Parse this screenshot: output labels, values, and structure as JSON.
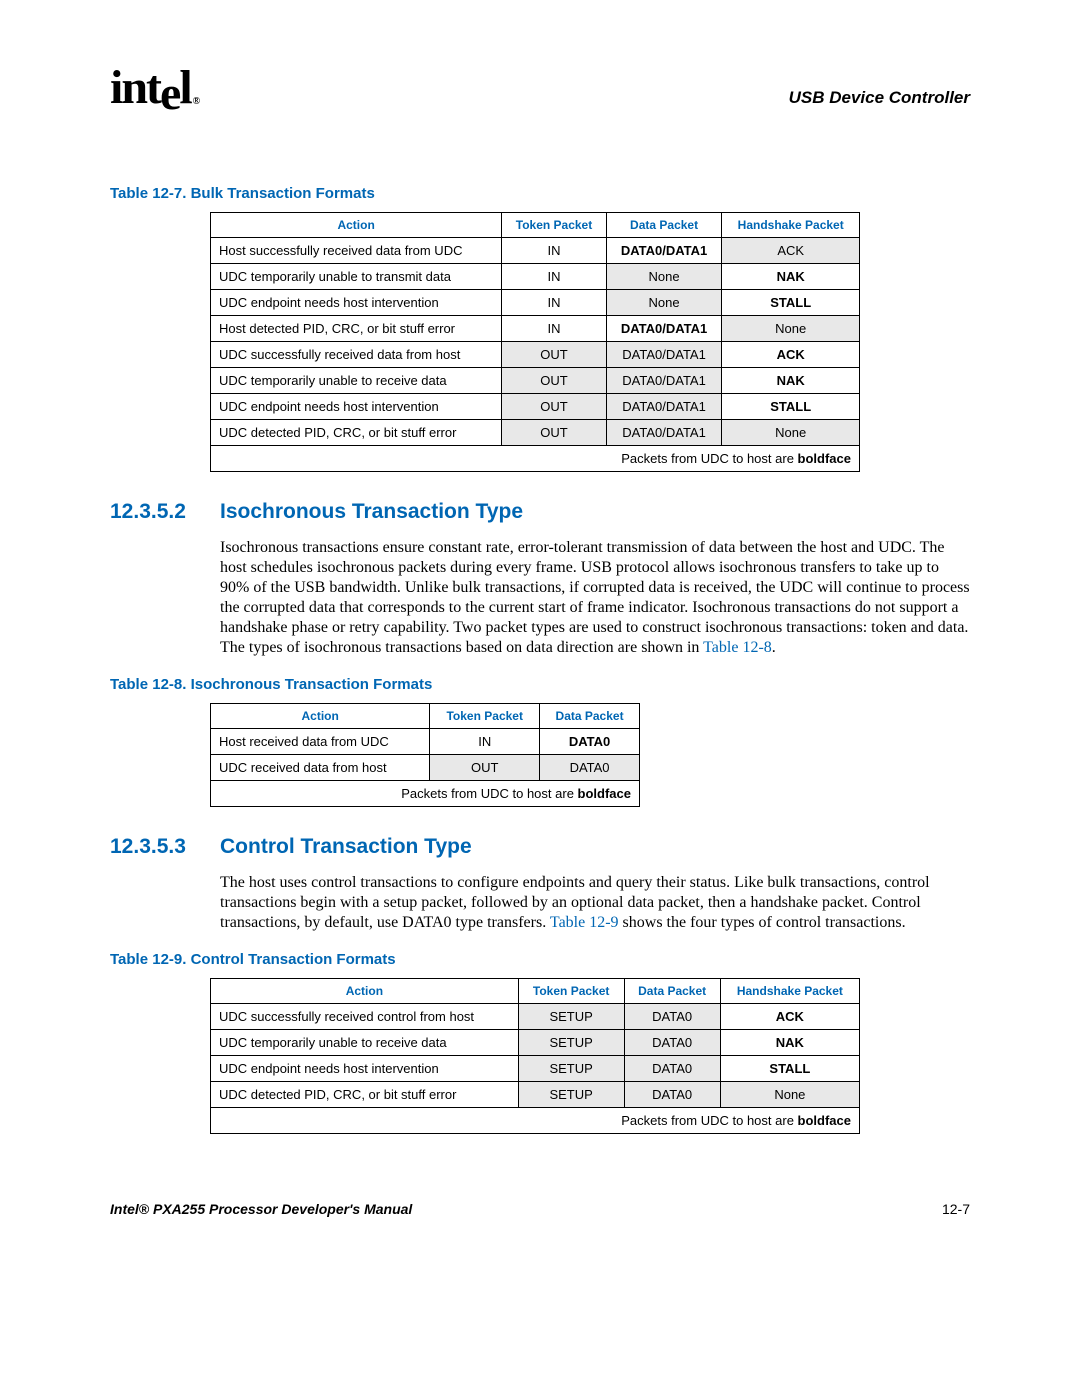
{
  "header": {
    "chapter": "USB Device Controller"
  },
  "table7": {
    "caption": "Table 12-7. Bulk Transaction Formats",
    "headers": [
      "Action",
      "Token Packet",
      "Data Packet",
      "Handshake Packet"
    ],
    "rows": [
      {
        "action": "Host successfully received data from UDC",
        "token": "IN",
        "data": "DATA0/DATA1",
        "hshake": "ACK",
        "data_bold": true,
        "hshake_shade": true
      },
      {
        "action": "UDC temporarily unable to transmit data",
        "token": "IN",
        "data": "None",
        "hshake": "NAK",
        "data_shade": true,
        "hshake_bold": true
      },
      {
        "action": "UDC endpoint needs host intervention",
        "token": "IN",
        "data": "None",
        "hshake": "STALL",
        "data_shade": true,
        "hshake_bold": true
      },
      {
        "action": "Host detected PID, CRC, or bit stuff error",
        "token": "IN",
        "data": "DATA0/DATA1",
        "hshake": "None",
        "data_bold": true,
        "hshake_shade": true
      },
      {
        "action": "UDC successfully received data from host",
        "token": "OUT",
        "data": "DATA0/DATA1",
        "hshake": "ACK",
        "token_shade": true,
        "data_shade": true,
        "hshake_bold": true
      },
      {
        "action": "UDC temporarily unable to receive data",
        "token": "OUT",
        "data": "DATA0/DATA1",
        "hshake": "NAK",
        "token_shade": true,
        "data_shade": true,
        "hshake_bold": true
      },
      {
        "action": "UDC endpoint needs host intervention",
        "token": "OUT",
        "data": "DATA0/DATA1",
        "hshake": "STALL",
        "token_shade": true,
        "data_shade": true,
        "hshake_bold": true
      },
      {
        "action": "UDC detected PID, CRC, or bit stuff error",
        "token": "OUT",
        "data": "DATA0/DATA1",
        "hshake": "None",
        "token_shade": true,
        "data_shade": true,
        "hshake_shade": true
      }
    ],
    "footnote_pre": "Packets from UDC to host are ",
    "footnote_bold": "boldface"
  },
  "sec2": {
    "num": "12.3.5.2",
    "title": "Isochronous Transaction Type",
    "para": "Isochronous transactions ensure constant rate, error-tolerant transmission of data between the host and UDC. The host schedules isochronous packets during every frame. USB protocol allows isochronous transfers to take up to 90% of the USB bandwidth. Unlike bulk transactions, if corrupted data is received, the UDC will continue to process the corrupted data that corresponds to the current start of frame indicator. Isochronous transactions do not support a handshake phase or retry capability. Two packet types are used to construct isochronous transactions: token and data. The types of isochronous transactions based on data direction are shown in ",
    "xref": "Table 12-8",
    "tail": "."
  },
  "table8": {
    "caption": "Table 12-8. Isochronous Transaction Formats",
    "headers": [
      "Action",
      "Token Packet",
      "Data Packet"
    ],
    "rows": [
      {
        "action": "Host received data from UDC",
        "token": "IN",
        "data": "DATA0",
        "data_bold": true
      },
      {
        "action": "UDC received data from host",
        "token": "OUT",
        "data": "DATA0",
        "token_shade": true,
        "data_shade": true
      }
    ],
    "footnote_pre": "Packets from UDC to host are ",
    "footnote_bold": "boldface"
  },
  "sec3": {
    "num": "12.3.5.3",
    "title": "Control Transaction Type",
    "para_pre": "The host uses control transactions to configure endpoints and query their status. Like bulk transactions, control transactions begin with a setup packet, followed by an optional data packet, then a handshake packet. Control transactions, by default, use DATA0 type transfers. ",
    "xref": "Table 12-9",
    "para_post": " shows the four types of control transactions."
  },
  "table9": {
    "caption": "Table 12-9. Control Transaction Formats",
    "headers": [
      "Action",
      "Token Packet",
      "Data Packet",
      "Handshake Packet"
    ],
    "rows": [
      {
        "action": "UDC successfully received control from host",
        "token": "SETUP",
        "data": "DATA0",
        "hshake": "ACK",
        "token_shade": true,
        "data_shade": true,
        "hshake_bold": true
      },
      {
        "action": "UDC temporarily unable to receive data",
        "token": "SETUP",
        "data": "DATA0",
        "hshake": "NAK",
        "token_shade": true,
        "data_shade": true,
        "hshake_bold": true
      },
      {
        "action": "UDC endpoint needs host intervention",
        "token": "SETUP",
        "data": "DATA0",
        "hshake": "STALL",
        "token_shade": true,
        "data_shade": true,
        "hshake_bold": true
      },
      {
        "action": "UDC detected PID, CRC, or bit stuff error",
        "token": "SETUP",
        "data": "DATA0",
        "hshake": "None",
        "token_shade": true,
        "data_shade": true,
        "hshake_shade": true
      }
    ],
    "footnote_pre": "Packets from UDC to host are ",
    "footnote_bold": "boldface"
  },
  "footer": {
    "left": "Intel® PXA255 Processor Developer's Manual",
    "right": "12-7"
  }
}
